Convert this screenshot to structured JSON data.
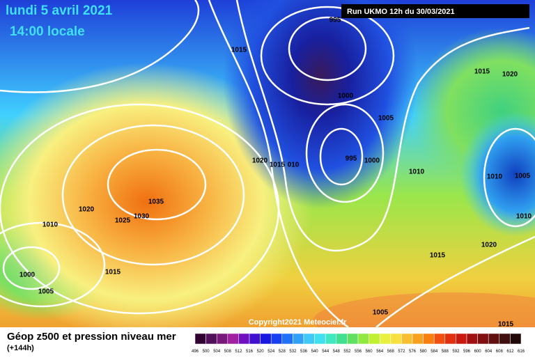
{
  "header": {
    "date": "lundi 5 avril 2021",
    "time": "14:00 locale",
    "run": "Run UKMO 12h du 30/03/2021"
  },
  "map": {
    "isobar_labels": [
      "995",
      "1015",
      "1000",
      "1005",
      "1015",
      "1020",
      "995",
      "1000",
      "1010",
      "1020",
      "1015",
      "010",
      "1010",
      "1005",
      "1035",
      "1030",
      "1025",
      "1020",
      "1010",
      "1015",
      "1000",
      "1005",
      "1010",
      "1020",
      "1015",
      "1005",
      "1015"
    ],
    "copyright": "Copyright2021 Meteociel.fr"
  },
  "footer": {
    "title": "Géop z500 et pression niveau mer",
    "lead": "(+144h)",
    "scale_labels": [
      "496",
      "500",
      "504",
      "508",
      "512",
      "516",
      "520",
      "524",
      "528",
      "532",
      "536",
      "540",
      "544",
      "548",
      "552",
      "556",
      "560",
      "564",
      "568",
      "572",
      "576",
      "580",
      "584",
      "588",
      "592",
      "596",
      "600",
      "604",
      "608",
      "612",
      "616"
    ]
  }
}
